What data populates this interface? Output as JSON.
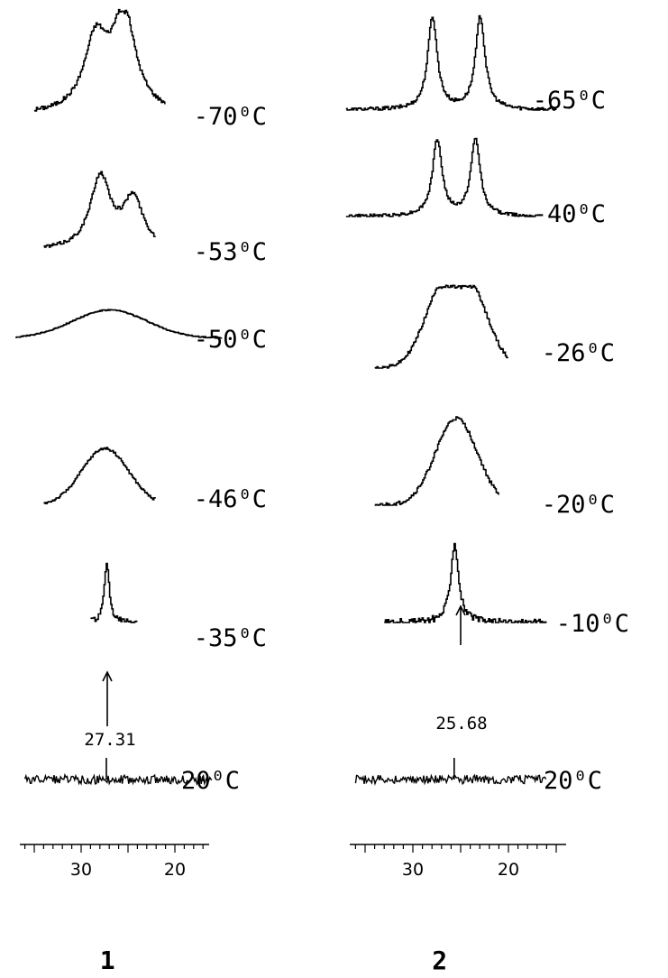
{
  "chart_data": [
    {
      "type": "line",
      "panel_label": "1",
      "x_axis": {
        "ticks": [
          30,
          20
        ],
        "direction": "decreasing",
        "range": [
          36,
          16
        ]
      },
      "reference_shift": "27.31",
      "spectra": [
        {
          "name": "-70⁰C",
          "kind": "doublet",
          "peaks": [
            {
              "x": 28.5,
              "h": 0.68
            },
            {
              "x": 25.5,
              "h": 0.95
            }
          ],
          "width": 1.5,
          "range": [
            35,
            21
          ]
        },
        {
          "name": "-53⁰C",
          "kind": "doublet",
          "peaks": [
            {
              "x": 28.0,
              "h": 0.8
            },
            {
              "x": 24.5,
              "h": 0.55
            }
          ],
          "width": 1.3,
          "range": [
            34,
            22
          ]
        },
        {
          "name": "-50⁰C",
          "kind": "broad",
          "peaks": [
            {
              "x": 27.0,
              "h": 0.95
            }
          ],
          "width": 4.0,
          "range": [
            37,
            15
          ]
        },
        {
          "name": "-46⁰C",
          "kind": "broad",
          "peaks": [
            {
              "x": 27.5,
              "h": 0.9
            }
          ],
          "width": 2.5,
          "range": [
            34,
            22
          ]
        },
        {
          "name": "-35⁰C",
          "kind": "sharp",
          "peaks": [
            {
              "x": 27.31,
              "h": 0.97
            }
          ],
          "width": 0.3,
          "range": [
            29,
            24
          ]
        },
        {
          "name": "20⁰C",
          "kind": "baseline",
          "peaks": [
            {
              "x": 27.31,
              "h": 0.95
            }
          ],
          "width": 0.05,
          "range": [
            36,
            16
          ]
        }
      ]
    },
    {
      "type": "line",
      "panel_label": "2",
      "x_axis": {
        "ticks": [
          30,
          20
        ],
        "direction": "decreasing",
        "range": [
          36,
          16
        ]
      },
      "reference_shift": "25.68",
      "spectra": [
        {
          "name": "-65⁰C",
          "kind": "doublet",
          "peaks": [
            {
              "x": 28.0,
              "h": 0.96
            },
            {
              "x": 23.0,
              "h": 0.96
            }
          ],
          "width": 0.6,
          "range": [
            37,
            15
          ]
        },
        {
          "name": "-40⁰C",
          "kind": "doublet",
          "peaks": [
            {
              "x": 27.5,
              "h": 0.92
            },
            {
              "x": 23.5,
              "h": 0.92
            }
          ],
          "width": 0.6,
          "range": [
            37,
            17
          ]
        },
        {
          "name": "-26⁰C",
          "kind": "doublet-broad",
          "peaks": [
            {
              "x": 27.0,
              "h": 0.85
            },
            {
              "x": 24.0,
              "h": 0.85
            }
          ],
          "width": 2.0,
          "range": [
            34,
            20
          ]
        },
        {
          "name": "-20⁰C",
          "kind": "broad",
          "peaks": [
            {
              "x": 25.5,
              "h": 0.96
            }
          ],
          "width": 2.2,
          "range": [
            34,
            21
          ]
        },
        {
          "name": "-10⁰C",
          "kind": "sharp",
          "peaks": [
            {
              "x": 25.68,
              "h": 0.95
            }
          ],
          "width": 0.5,
          "range": [
            33,
            16
          ]
        },
        {
          "name": "20⁰C",
          "kind": "baseline",
          "peaks": [
            {
              "x": 25.68,
              "h": 0.95
            }
          ],
          "width": 0.05,
          "range": [
            36,
            16
          ]
        }
      ]
    }
  ]
}
